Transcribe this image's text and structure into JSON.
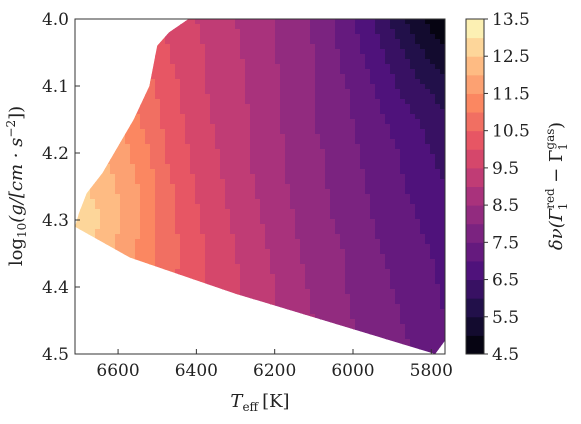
{
  "chart_data": {
    "type": "heatmap",
    "subtype": "filled-contour",
    "title": "",
    "xlabel": {
      "base": "T",
      "sub": "eff",
      "unit": "[K]"
    },
    "ylabel": {
      "func": "log",
      "sub": "10",
      "arg": "(g/[cm · s",
      "sup": "−2",
      "tail": "])"
    },
    "colorbar_label": {
      "lead": "δν(Γ",
      "sup1": "red",
      "sub1": "1",
      "mid": " − Γ",
      "sup2": "gas",
      "sub2": "1",
      "tail": ")"
    },
    "x_ticks": [
      6600,
      6400,
      6200,
      6000,
      5800
    ],
    "x_tick_labels": [
      "6600",
      "6400",
      "6200",
      "6000",
      "5800"
    ],
    "y_ticks": [
      4.0,
      4.1,
      4.2,
      4.3,
      4.4,
      4.5
    ],
    "y_tick_labels": [
      "4.0",
      "4.1",
      "4.2",
      "4.3",
      "4.4",
      "4.5"
    ],
    "xlim": [
      6710,
      5765
    ],
    "ylim": [
      4.5,
      4.0
    ],
    "x_axis_inverted": true,
    "y_axis_inverted": true,
    "colorbar_ticks": [
      4.5,
      5.5,
      6.5,
      7.5,
      8.5,
      9.5,
      10.5,
      11.5,
      12.5,
      13.5
    ],
    "colorbar_tick_labels": [
      "4.5",
      "5.5",
      "6.5",
      "7.5",
      "8.5",
      "9.5",
      "10.5",
      "11.5",
      "12.5",
      "13.5"
    ],
    "color_range": [
      4.5,
      13.5
    ],
    "colormap": "magma",
    "colormap_stops": [
      "#000004",
      "#1c1044",
      "#4f127b",
      "#812581",
      "#b5367a",
      "#e55064",
      "#fb8761",
      "#fec287",
      "#fcfdbf"
    ],
    "levels": [
      4.5,
      5.0,
      5.5,
      6.0,
      6.5,
      7.0,
      7.5,
      8.0,
      8.5,
      9.0,
      9.5,
      10.0,
      10.5,
      11.0,
      11.5,
      12.0,
      12.5,
      13.0,
      13.5
    ],
    "domain_boundary": {
      "teff": [
        6500,
        6470,
        6420,
        6390,
        6310,
        5765,
        5765,
        5790,
        6300,
        6570,
        6710,
        6700,
        6680,
        6640,
        6600,
        6560,
        6520
      ],
      "logg": [
        4.04,
        4.02,
        4.0,
        4.0,
        4.0,
        4.0,
        4.48,
        4.5,
        4.41,
        4.356,
        4.31,
        4.29,
        4.26,
        4.23,
        4.19,
        4.15,
        4.1
      ]
    },
    "approx_values": {
      "teff": [
        6710,
        6640,
        6580,
        6520,
        6470,
        6420,
        6360,
        6300,
        6250,
        6200,
        6150,
        6100,
        6050,
        6000,
        5950,
        5900,
        5850,
        5800,
        5765
      ],
      "logg": [
        4.0,
        4.05,
        4.1,
        4.15,
        4.2,
        4.25,
        4.3,
        4.35,
        4.4,
        4.45,
        4.5
      ],
      "value": [
        [
          11.4,
          11.0,
          10.6,
          10.2,
          9.9,
          9.6,
          9.3,
          9.0,
          8.8,
          8.5,
          8.2,
          7.9,
          7.5,
          7.0,
          6.5,
          5.9,
          5.3,
          4.8,
          4.6
        ],
        [
          11.6,
          11.2,
          10.8,
          10.4,
          10.0,
          9.7,
          9.4,
          9.1,
          8.8,
          8.5,
          8.3,
          8.0,
          7.6,
          7.2,
          6.8,
          6.3,
          5.8,
          5.3,
          5.1
        ],
        [
          11.8,
          11.4,
          11.0,
          10.6,
          10.2,
          9.8,
          9.4,
          9.1,
          8.9,
          8.6,
          8.3,
          8.0,
          7.7,
          7.4,
          7.0,
          6.6,
          6.2,
          5.9,
          5.7
        ],
        [
          12.0,
          11.7,
          11.3,
          10.8,
          10.3,
          9.9,
          9.5,
          9.2,
          8.9,
          8.6,
          8.3,
          8.0,
          7.8,
          7.5,
          7.2,
          6.9,
          6.6,
          6.3,
          6.1
        ],
        [
          12.3,
          12.0,
          11.6,
          11.0,
          10.4,
          10.0,
          9.6,
          9.2,
          8.9,
          8.6,
          8.4,
          8.1,
          7.9,
          7.6,
          7.3,
          7.1,
          6.8,
          6.5,
          6.3
        ],
        [
          12.6,
          12.3,
          11.8,
          11.2,
          10.6,
          10.1,
          9.7,
          9.3,
          9.0,
          8.7,
          8.4,
          8.2,
          7.9,
          7.7,
          7.4,
          7.2,
          6.9,
          6.7,
          6.5
        ],
        [
          13.0,
          12.5,
          11.9,
          11.2,
          10.7,
          10.2,
          9.8,
          9.4,
          9.1,
          8.8,
          8.5,
          8.2,
          8.0,
          7.8,
          7.5,
          7.3,
          7.1,
          6.8,
          6.7
        ],
        [
          12.6,
          12.2,
          11.7,
          11.2,
          10.7,
          10.3,
          9.9,
          9.5,
          9.2,
          8.9,
          8.6,
          8.3,
          8.1,
          7.9,
          7.6,
          7.4,
          7.2,
          7.0,
          6.8
        ],
        [
          12.2,
          11.8,
          11.4,
          11.0,
          10.6,
          10.3,
          9.9,
          9.6,
          9.3,
          9.0,
          8.7,
          8.4,
          8.2,
          7.9,
          7.7,
          7.5,
          7.3,
          7.1,
          6.9
        ],
        [
          11.8,
          11.5,
          11.1,
          10.8,
          10.5,
          10.2,
          9.9,
          9.6,
          9.3,
          9.0,
          8.8,
          8.5,
          8.3,
          8.0,
          7.8,
          7.6,
          7.4,
          7.2,
          7.0
        ],
        [
          11.5,
          11.2,
          10.9,
          10.6,
          10.3,
          10.0,
          9.8,
          9.5,
          9.3,
          9.0,
          8.8,
          8.6,
          8.3,
          8.1,
          7.9,
          7.7,
          7.5,
          7.3,
          7.1
        ]
      ]
    },
    "grid": false,
    "legend": "none",
    "colorbar_position": "right"
  }
}
